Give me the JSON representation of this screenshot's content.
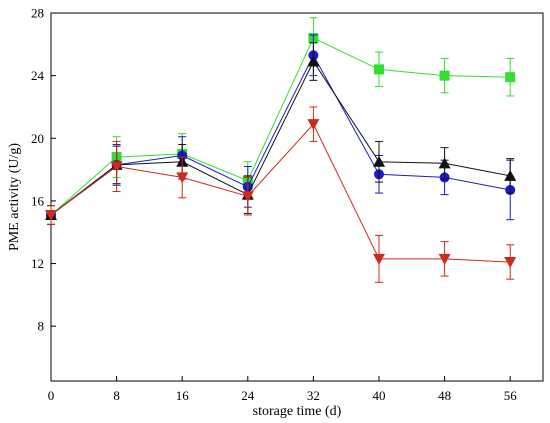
{
  "chart_data": {
    "type": "line",
    "title": "",
    "xlabel": "storage time (d)",
    "ylabel": "PME activity (U/g)",
    "xlim": [
      0,
      60
    ],
    "ylim": [
      4.5,
      28
    ],
    "xticks": [
      0,
      8,
      16,
      24,
      32,
      40,
      48,
      56
    ],
    "yticks": [
      8,
      12,
      16,
      20,
      24,
      28
    ],
    "grid": false,
    "legend": "none",
    "series": [
      {
        "marker": "square",
        "color": "#33dd33",
        "x": [
          0,
          8,
          16,
          24,
          32,
          40,
          48,
          56
        ],
        "y": [
          15.1,
          18.8,
          19.0,
          17.3,
          26.4,
          24.4,
          24.0,
          23.9
        ],
        "err": [
          0.6,
          1.3,
          1.3,
          1.2,
          1.3,
          1.1,
          1.1,
          1.2
        ]
      },
      {
        "marker": "circle",
        "color": "#1a1acc",
        "x": [
          0,
          8,
          16,
          24,
          32,
          40,
          48,
          56
        ],
        "y": [
          15.1,
          18.3,
          18.9,
          16.9,
          25.3,
          17.7,
          17.5,
          16.7
        ],
        "err": [
          0.6,
          1.3,
          1.2,
          1.3,
          1.3,
          1.2,
          1.1,
          1.9
        ]
      },
      {
        "marker": "triangle-up",
        "color": "#111111",
        "x": [
          0,
          8,
          16,
          24,
          32,
          40,
          48,
          56
        ],
        "y": [
          15.1,
          18.3,
          18.5,
          16.4,
          24.9,
          18.5,
          18.4,
          17.6
        ],
        "err": [
          0.6,
          1.2,
          1.1,
          1.2,
          1.2,
          1.3,
          1.0,
          1.1
        ]
      },
      {
        "marker": "triangle-down",
        "color": "#cc2a1a",
        "x": [
          0,
          8,
          16,
          24,
          32,
          40,
          48,
          56
        ],
        "y": [
          15.1,
          18.2,
          17.5,
          16.3,
          20.9,
          12.3,
          12.3,
          12.1
        ],
        "err": [
          0.6,
          1.6,
          1.3,
          1.2,
          1.1,
          1.5,
          1.1,
          1.1
        ]
      }
    ]
  }
}
